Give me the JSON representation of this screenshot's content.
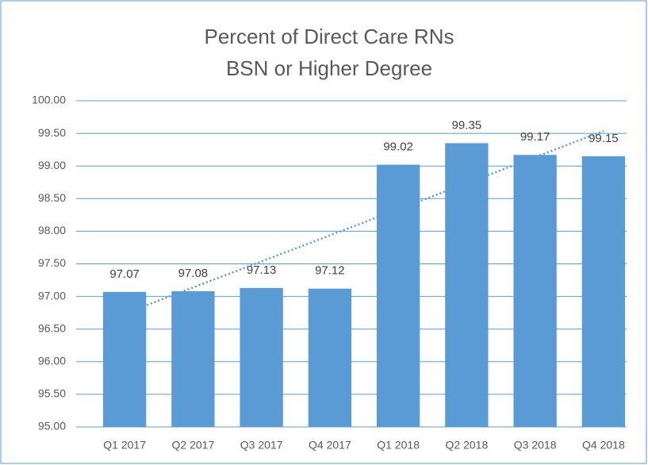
{
  "chart_data": {
    "type": "bar",
    "title": [
      "Percent of Direct Care RNs",
      "BSN or Higher Degree"
    ],
    "categories": [
      "Q1 2017",
      "Q2 2017",
      "Q3 2017",
      "Q4 2017",
      "Q1 2018",
      "Q2 2018",
      "Q3 2018",
      "Q4 2018"
    ],
    "values": [
      97.07,
      97.08,
      97.13,
      97.12,
      99.02,
      99.35,
      99.17,
      99.15
    ],
    "color": "#5b9bd5",
    "ylim": [
      95,
      100
    ],
    "yticks": [
      {
        "value": 95,
        "label": "95.00"
      },
      {
        "value": 95.5,
        "label": "95.50"
      },
      {
        "value": 96,
        "label": "96.00"
      },
      {
        "value": 96.5,
        "label": "96.50"
      },
      {
        "value": 97,
        "label": "97.00"
      },
      {
        "value": 97.5,
        "label": "97.50"
      },
      {
        "value": 98,
        "label": "98.00"
      },
      {
        "value": 98.5,
        "label": "98.50"
      },
      {
        "value": 99,
        "label": "99.00"
      },
      {
        "value": 99.5,
        "label": "99.50"
      },
      {
        "value": 100,
        "label": "100.00"
      }
    ],
    "grid": true,
    "trendline": "linear"
  }
}
